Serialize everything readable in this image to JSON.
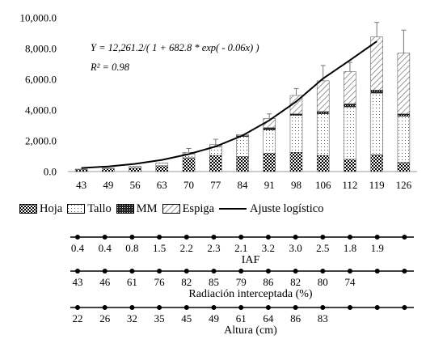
{
  "equation": "Y = 12,261.2/( 1 + 682.8 * exp( - 0.06x) )",
  "r2": "R² = 0.98",
  "chart_data": {
    "type": "bar",
    "stacked": true,
    "categories": [
      "43",
      "49",
      "56",
      "63",
      "70",
      "77",
      "84",
      "91",
      "98",
      "106",
      "112",
      "119",
      "126"
    ],
    "ylim": [
      0,
      10000
    ],
    "yticks": [
      "0.0",
      "2,000.0",
      "4,000.0",
      "6,000.0",
      "8,000.0",
      "10,000.0"
    ],
    "series": [
      {
        "name": "Hoja",
        "pattern": "checker",
        "values": [
          120,
          180,
          250,
          380,
          900,
          1050,
          980,
          1200,
          1250,
          1050,
          800,
          1100,
          600
        ]
      },
      {
        "name": "Tallo",
        "pattern": "dots",
        "values": [
          40,
          60,
          100,
          180,
          250,
          550,
          1300,
          1500,
          2400,
          2700,
          3400,
          4000,
          3000
        ]
      },
      {
        "name": "MM",
        "pattern": "dense",
        "values": [
          0,
          0,
          0,
          0,
          0,
          0,
          50,
          150,
          100,
          150,
          200,
          200,
          150
        ]
      },
      {
        "name": "Espiga",
        "pattern": "diag",
        "values": [
          0,
          0,
          0,
          0,
          100,
          150,
          70,
          600,
          1200,
          2000,
          2100,
          3450,
          3950
        ]
      }
    ],
    "errors": [
      0,
      0,
      0,
      0,
      250,
      350,
      0,
      300,
      450,
      1000,
      600,
      950,
      1500
    ],
    "fit": {
      "name": "Ajuste logístico",
      "x": [
        "43",
        "49",
        "56",
        "63",
        "70",
        "77",
        "84",
        "91",
        "98",
        "106",
        "112",
        "119"
      ],
      "y": [
        230,
        330,
        500,
        760,
        1130,
        1630,
        2340,
        3330,
        4550,
        6050,
        7240,
        8470
      ]
    },
    "legend_position": "bottom",
    "grid": false
  },
  "rows": [
    {
      "label": "IAF",
      "values": [
        "0.4",
        "0.4",
        "0.8",
        "1.5",
        "2.2",
        "2.3",
        "2.1",
        "3.2",
        "3.0",
        "2.5",
        "1.8",
        "1.9",
        ""
      ]
    },
    {
      "label": "Radiación interceptada (%)",
      "values": [
        "43",
        "46",
        "61",
        "76",
        "82",
        "85",
        "79",
        "86",
        "82",
        "80",
        "74",
        "",
        ""
      ]
    },
    {
      "label": "Altura (cm)",
      "values": [
        "22",
        "26",
        "32",
        "35",
        "45",
        "49",
        "61",
        "64",
        "86",
        "83",
        "",
        "",
        ""
      ]
    }
  ]
}
